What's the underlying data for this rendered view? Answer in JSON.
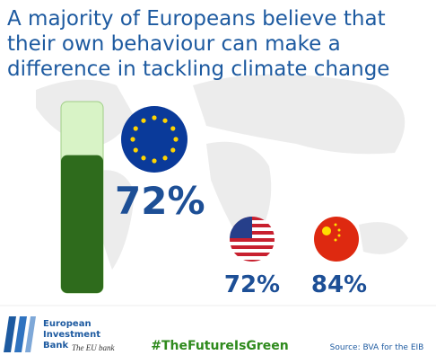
{
  "chart_data": {
    "type": "tube",
    "title": "A majority of Europeans believe that their own behaviour can make a difference in tackling climate change",
    "values": [
      72,
      72,
      84
    ],
    "value_labels": [
      "72%",
      "72%",
      "84%"
    ],
    "ylim": [
      0,
      100
    ],
    "color": "#2e6b1c",
    "track_color": "#d8f3c6"
  },
  "footer": {
    "logo_line1": "European",
    "logo_line2": "Investment",
    "logo_line3": "Bank",
    "tagline": "The EU bank",
    "hashtag": "#TheFutureIsGreen",
    "source": "Source: BVA for the EIB"
  }
}
